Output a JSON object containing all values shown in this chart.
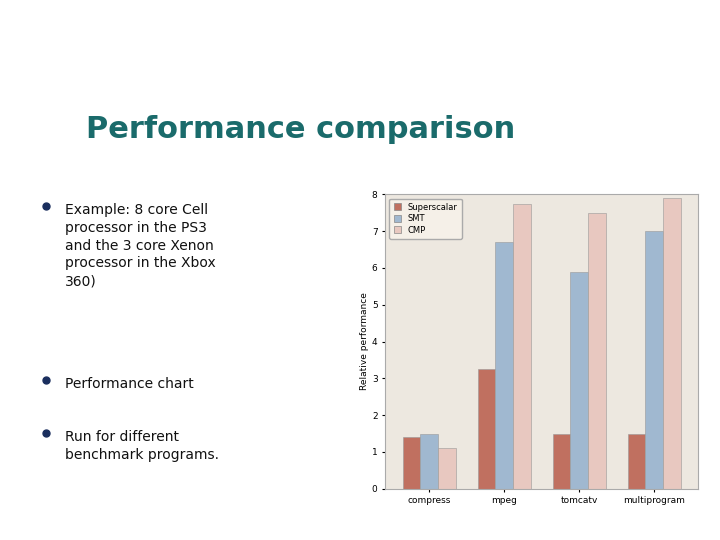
{
  "title": "Performance comparison",
  "title_color": "#1a6b6b",
  "header_bar_color": "#1a2e5e",
  "slide_bg": "#ffffff",
  "green_rect_color": "#8fbc8f",
  "bullet_texts": [
    "Example: 8 core Cell\nprocessor in the PS3\nand the 3 core Xenon\nprocessor in the Xbox\n360)",
    "Performance chart",
    "Run for different\nbenchmark programs."
  ],
  "categories": [
    "compress",
    "mpeg",
    "tomcatv",
    "multiprogram"
  ],
  "series_names": [
    "Superscalar",
    "SMT",
    "CMP"
  ],
  "series": {
    "Superscalar": [
      1.4,
      3.25,
      1.5,
      1.5
    ],
    "SMT": [
      1.5,
      6.7,
      5.9,
      7.0
    ],
    "CMP": [
      1.1,
      7.75,
      7.5,
      7.9
    ]
  },
  "series_colors": {
    "Superscalar": "#c07060",
    "SMT": "#a0b8d0",
    "CMP": "#e8c8c0"
  },
  "ylabel": "Relative performance",
  "ylim": [
    0,
    8
  ],
  "yticks": [
    0,
    1,
    2,
    3,
    4,
    5,
    6,
    7,
    8
  ],
  "chart_bg": "#ede8e0",
  "chart_border": "#aaaaaa",
  "legend_bg": "#f5f0e8"
}
